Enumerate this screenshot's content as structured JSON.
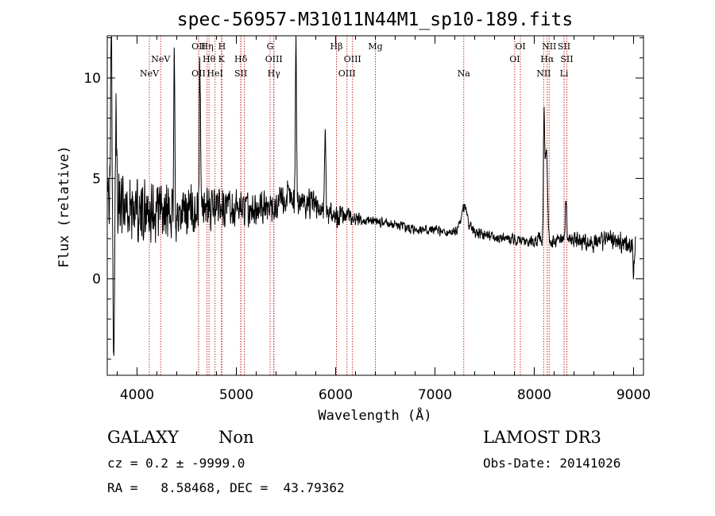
{
  "chart_data": {
    "type": "line",
    "title": "spec-56957-M31011N44M1_sp10-189.fits",
    "xlabel": "Wavelength (Å)",
    "ylabel": "Flux (relative)",
    "xlim": [
      3700,
      9100
    ],
    "ylim": [
      -4.8,
      12.1
    ],
    "xticks": [
      4000,
      5000,
      6000,
      7000,
      8000,
      9000
    ],
    "xtick_labels": [
      "4000",
      "5000",
      "6000",
      "7000",
      "8000",
      "9000"
    ],
    "yticks": [
      0,
      5,
      10
    ],
    "ytick_labels": [
      "0",
      "5",
      "10"
    ],
    "series": [
      {
        "name": "spectrum",
        "anchors": [
          [
            3720,
            3.8
          ],
          [
            3750,
            4.6
          ],
          [
            3800,
            3.9
          ],
          [
            3900,
            3.6
          ],
          [
            4000,
            3.4
          ],
          [
            4100,
            3.3
          ],
          [
            4200,
            3.3
          ],
          [
            4300,
            3.2
          ],
          [
            4400,
            3.2
          ],
          [
            4500,
            3.3
          ],
          [
            4600,
            3.5
          ],
          [
            4700,
            3.4
          ],
          [
            4800,
            3.6
          ],
          [
            4900,
            3.5
          ],
          [
            5000,
            3.6
          ],
          [
            5100,
            3.5
          ],
          [
            5200,
            3.4
          ],
          [
            5300,
            3.5
          ],
          [
            5400,
            3.6
          ],
          [
            5500,
            4.0
          ],
          [
            5600,
            3.9
          ],
          [
            5700,
            3.8
          ],
          [
            5800,
            3.6
          ],
          [
            5900,
            3.3
          ],
          [
            6000,
            3.1
          ],
          [
            6100,
            3.2
          ],
          [
            6200,
            3.0
          ],
          [
            6300,
            2.9
          ],
          [
            6400,
            2.9
          ],
          [
            6500,
            2.8
          ],
          [
            6600,
            2.7
          ],
          [
            6700,
            2.6
          ],
          [
            6800,
            2.5
          ],
          [
            6900,
            2.5
          ],
          [
            7000,
            2.4
          ],
          [
            7100,
            2.3
          ],
          [
            7200,
            2.3
          ],
          [
            7300,
            2.8
          ],
          [
            7400,
            2.3
          ],
          [
            7500,
            2.2
          ],
          [
            7600,
            2.1
          ],
          [
            7700,
            2.0
          ],
          [
            7800,
            2.0
          ],
          [
            7900,
            1.9
          ],
          [
            8000,
            1.9
          ],
          [
            8100,
            2.0
          ],
          [
            8200,
            1.8
          ],
          [
            8300,
            2.1
          ],
          [
            8400,
            1.9
          ],
          [
            8500,
            1.9
          ],
          [
            8600,
            1.8
          ],
          [
            8700,
            1.9
          ],
          [
            8800,
            1.9
          ],
          [
            8900,
            1.8
          ],
          [
            9000,
            1.8
          ]
        ],
        "features": [
          {
            "x": 3740,
            "w": 6,
            "h": 9.0
          },
          {
            "x": 3765,
            "w": 6,
            "h": -8.5
          },
          {
            "x": 3790,
            "w": 5,
            "h": 4.5
          },
          {
            "x": 4375,
            "w": 5,
            "h": 8.0
          },
          {
            "x": 4635,
            "w": 7,
            "h": 5.0
          },
          {
            "x": 4630,
            "w": 4,
            "h": 3.0
          },
          {
            "x": 5600,
            "w": 6,
            "h": 8.0
          },
          {
            "x": 5895,
            "w": 6,
            "h": 4.5
          },
          {
            "x": 7295,
            "w": 25,
            "h": 0.8
          },
          {
            "x": 8098,
            "w": 6,
            "h": 5.5
          },
          {
            "x": 8120,
            "w": 12,
            "h": 4.5
          },
          {
            "x": 8320,
            "w": 6,
            "h": 2.0
          },
          {
            "x": 9000,
            "w": 8,
            "h": -1.5
          }
        ],
        "noise_levels": [
          [
            3700,
            2.0
          ],
          [
            4300,
            1.7
          ],
          [
            4700,
            1.3
          ],
          [
            5000,
            1.0
          ],
          [
            5600,
            1.0
          ],
          [
            6000,
            0.7
          ],
          [
            6300,
            0.35
          ],
          [
            7500,
            0.3
          ],
          [
            8000,
            0.4
          ],
          [
            8500,
            0.5
          ],
          [
            9100,
            0.7
          ]
        ]
      }
    ],
    "line_markers": [
      {
        "wavelength": 4124,
        "label": "NeV",
        "row": 3
      },
      {
        "wavelength": 4238,
        "label": "NeV",
        "row": 2
      },
      {
        "wavelength": 4620,
        "label": "OII",
        "row": 1
      },
      {
        "wavelength": 4620,
        "label": "OII",
        "row": 3
      },
      {
        "wavelength": 4705,
        "label": "Hη",
        "row": 1
      },
      {
        "wavelength": 4725,
        "label": "Hθ",
        "row": 2
      },
      {
        "wavelength": 4785,
        "label": "HeI",
        "row": 3
      },
      {
        "wavelength": 4855,
        "label": "H",
        "row": 1
      },
      {
        "wavelength": 4850,
        "label": "K",
        "row": 2
      },
      {
        "wavelength": 5045,
        "label": "Hδ",
        "row": 2
      },
      {
        "wavelength": 5045,
        "label": "SII",
        "row": 3
      },
      {
        "wavelength": 5080,
        "label": "",
        "row": 0
      },
      {
        "wavelength": 5340,
        "label": "G",
        "row": 1
      },
      {
        "wavelength": 5378,
        "label": "OIII",
        "row": 2
      },
      {
        "wavelength": 5378,
        "label": "Hγ",
        "row": 3
      },
      {
        "wavelength": 6008,
        "label": "Hβ",
        "row": 1
      },
      {
        "wavelength": 6114,
        "label": "OIII",
        "row": 3
      },
      {
        "wavelength": 6170,
        "label": "OIII",
        "row": 2
      },
      {
        "wavelength": 6400,
        "label": "Mg",
        "row": 1
      },
      {
        "wavelength": 7290,
        "label": "Na",
        "row": 3
      },
      {
        "wavelength": 7803,
        "label": "OI",
        "row": 2
      },
      {
        "wavelength": 7860,
        "label": "OI",
        "row": 1
      },
      {
        "wavelength": 8095,
        "label": "NII",
        "row": 3
      },
      {
        "wavelength": 8130,
        "label": "Hα",
        "row": 2
      },
      {
        "wavelength": 8150,
        "label": "NII",
        "row": 1
      },
      {
        "wavelength": 8300,
        "label": "SII",
        "row": 1
      },
      {
        "wavelength": 8328,
        "label": "SII",
        "row": 2
      },
      {
        "wavelength": 8300,
        "label": "Li",
        "row": 3
      }
    ],
    "marker_color": "#c00000"
  },
  "info": {
    "object_class": "GALAXY",
    "subclass": "Non",
    "cz_line": "cz = 0.2 ± -9999.0",
    "coord_line": "RA =   8.58468, DEC =  43.79362",
    "survey": "LAMOST DR3",
    "obs_date": "Obs-Date: 20141026"
  }
}
